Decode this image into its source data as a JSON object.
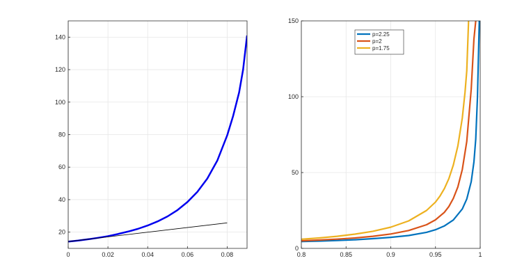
{
  "chart_data": [
    {
      "type": "line",
      "title": "",
      "xlabel": "",
      "ylabel": "",
      "xlim": [
        0,
        0.09
      ],
      "ylim": [
        10,
        150
      ],
      "grid": true,
      "legend": null,
      "x_ticks": [
        0,
        0.02,
        0.04,
        0.06,
        0.08
      ],
      "x_tick_labels": [
        "0",
        "0.02",
        "0.04",
        "0.06",
        "0.08"
      ],
      "y_ticks": [
        20,
        40,
        60,
        80,
        100,
        120,
        140
      ],
      "y_tick_labels": [
        "20",
        "40",
        "60",
        "80",
        "100",
        "120",
        "140"
      ],
      "series": [
        {
          "color": "#0000ee",
          "width": 2.5,
          "x": [
            0,
            0.005,
            0.01,
            0.015,
            0.02,
            0.025,
            0.03,
            0.035,
            0.04,
            0.045,
            0.05,
            0.055,
            0.06,
            0.065,
            0.07,
            0.075,
            0.08,
            0.083,
            0.086,
            0.088,
            0.09
          ],
          "y": [
            14.2,
            14.8,
            15.6,
            16.5,
            17.5,
            18.8,
            20.3,
            22.0,
            24.1,
            26.6,
            29.7,
            33.6,
            38.5,
            44.8,
            53.0,
            64.0,
            79.5,
            91.5,
            106.0,
            120.0,
            141.0
          ]
        },
        {
          "color": "#000000",
          "width": 0.8,
          "x": [
            0,
            0.08
          ],
          "y": [
            14.2,
            25.7
          ]
        }
      ]
    },
    {
      "type": "line",
      "title": "",
      "xlabel": "",
      "ylabel": "",
      "xlim": [
        0.8,
        1
      ],
      "ylim": [
        0,
        150
      ],
      "grid": true,
      "legend": "top-left",
      "x_ticks": [
        0.8,
        0.85,
        0.9,
        0.95,
        1
      ],
      "x_tick_labels": [
        "0.8",
        "0.85",
        "0.9",
        "0.95",
        "1"
      ],
      "y_ticks": [
        0,
        50,
        100,
        150
      ],
      "y_tick_labels": [
        "0",
        "50",
        "100",
        "150"
      ],
      "series": [
        {
          "name": "p=2.25",
          "color": "#0072bd",
          "x": [
            0.8,
            0.82,
            0.84,
            0.86,
            0.88,
            0.9,
            0.92,
            0.94,
            0.95,
            0.96,
            0.97,
            0.98,
            0.985,
            0.99,
            0.993,
            0.995,
            0.997,
            0.998,
            0.999
          ],
          "y": [
            4.5,
            4.8,
            5.2,
            5.7,
            6.4,
            7.3,
            8.5,
            10.6,
            12.3,
            14.8,
            18.7,
            26.0,
            32.5,
            44.0,
            57.0,
            72.0,
            100.0,
            125.0,
            150.0
          ]
        },
        {
          "name": "p=2",
          "color": "#d95319",
          "x": [
            0.8,
            0.82,
            0.84,
            0.86,
            0.88,
            0.9,
            0.92,
            0.94,
            0.95,
            0.96,
            0.965,
            0.97,
            0.975,
            0.98,
            0.985,
            0.99,
            0.993,
            0.995
          ],
          "y": [
            5.0,
            5.5,
            6.1,
            6.9,
            8.0,
            9.5,
            11.8,
            15.6,
            18.8,
            23.8,
            27.6,
            33.0,
            40.5,
            52.0,
            70.5,
            105.0,
            138.0,
            150.0
          ]
        },
        {
          "name": "p=1.75",
          "color": "#edb120",
          "x": [
            0.8,
            0.82,
            0.84,
            0.86,
            0.88,
            0.9,
            0.92,
            0.94,
            0.95,
            0.955,
            0.96,
            0.965,
            0.97,
            0.975,
            0.98,
            0.983,
            0.985,
            0.987
          ],
          "y": [
            6.0,
            6.9,
            8.0,
            9.4,
            11.3,
            14.0,
            18.1,
            25.0,
            30.5,
            34.5,
            39.5,
            46.0,
            55.0,
            67.5,
            86.0,
            103.0,
            117.0,
            150.0
          ]
        }
      ]
    }
  ]
}
